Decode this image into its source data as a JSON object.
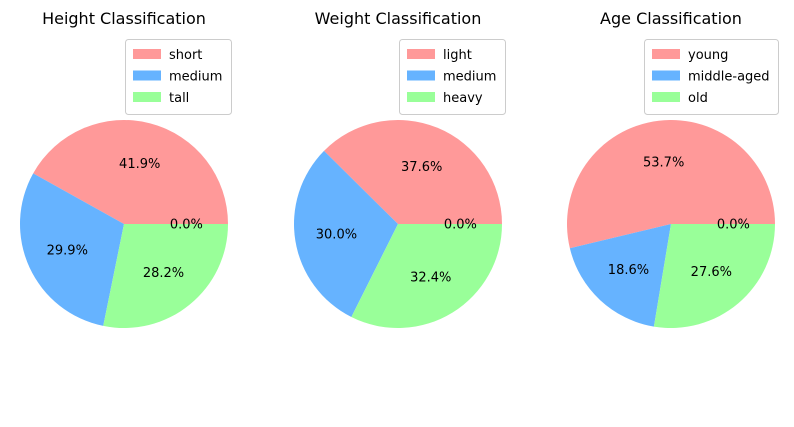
{
  "chart_data": [
    {
      "type": "pie",
      "title": "Height Classification",
      "labels": [
        "short",
        "medium",
        "tall"
      ],
      "values": [
        41.9,
        29.9,
        28.2
      ],
      "value_labels": [
        "41.9%",
        "29.9%",
        "28.2%"
      ],
      "extra_label": "0.0%",
      "legend_placement": "upper-right"
    },
    {
      "type": "pie",
      "title": "Weight Classification",
      "labels": [
        "light",
        "medium",
        "heavy"
      ],
      "values": [
        37.6,
        30.0,
        32.4
      ],
      "value_labels": [
        "37.6%",
        "30.0%",
        "32.4%"
      ],
      "extra_label": "0.0%",
      "legend_placement": "upper-right"
    },
    {
      "type": "pie",
      "title": "Age Classification",
      "labels": [
        "young",
        "middle-aged",
        "old"
      ],
      "values": [
        53.7,
        18.6,
        27.6
      ],
      "value_labels": [
        "53.7%",
        "18.6%",
        "27.6%"
      ],
      "extra_label": "0.0%",
      "legend_placement": "upper-right"
    }
  ],
  "colors": [
    "#ff9999",
    "#66b3ff",
    "#99ff99"
  ]
}
